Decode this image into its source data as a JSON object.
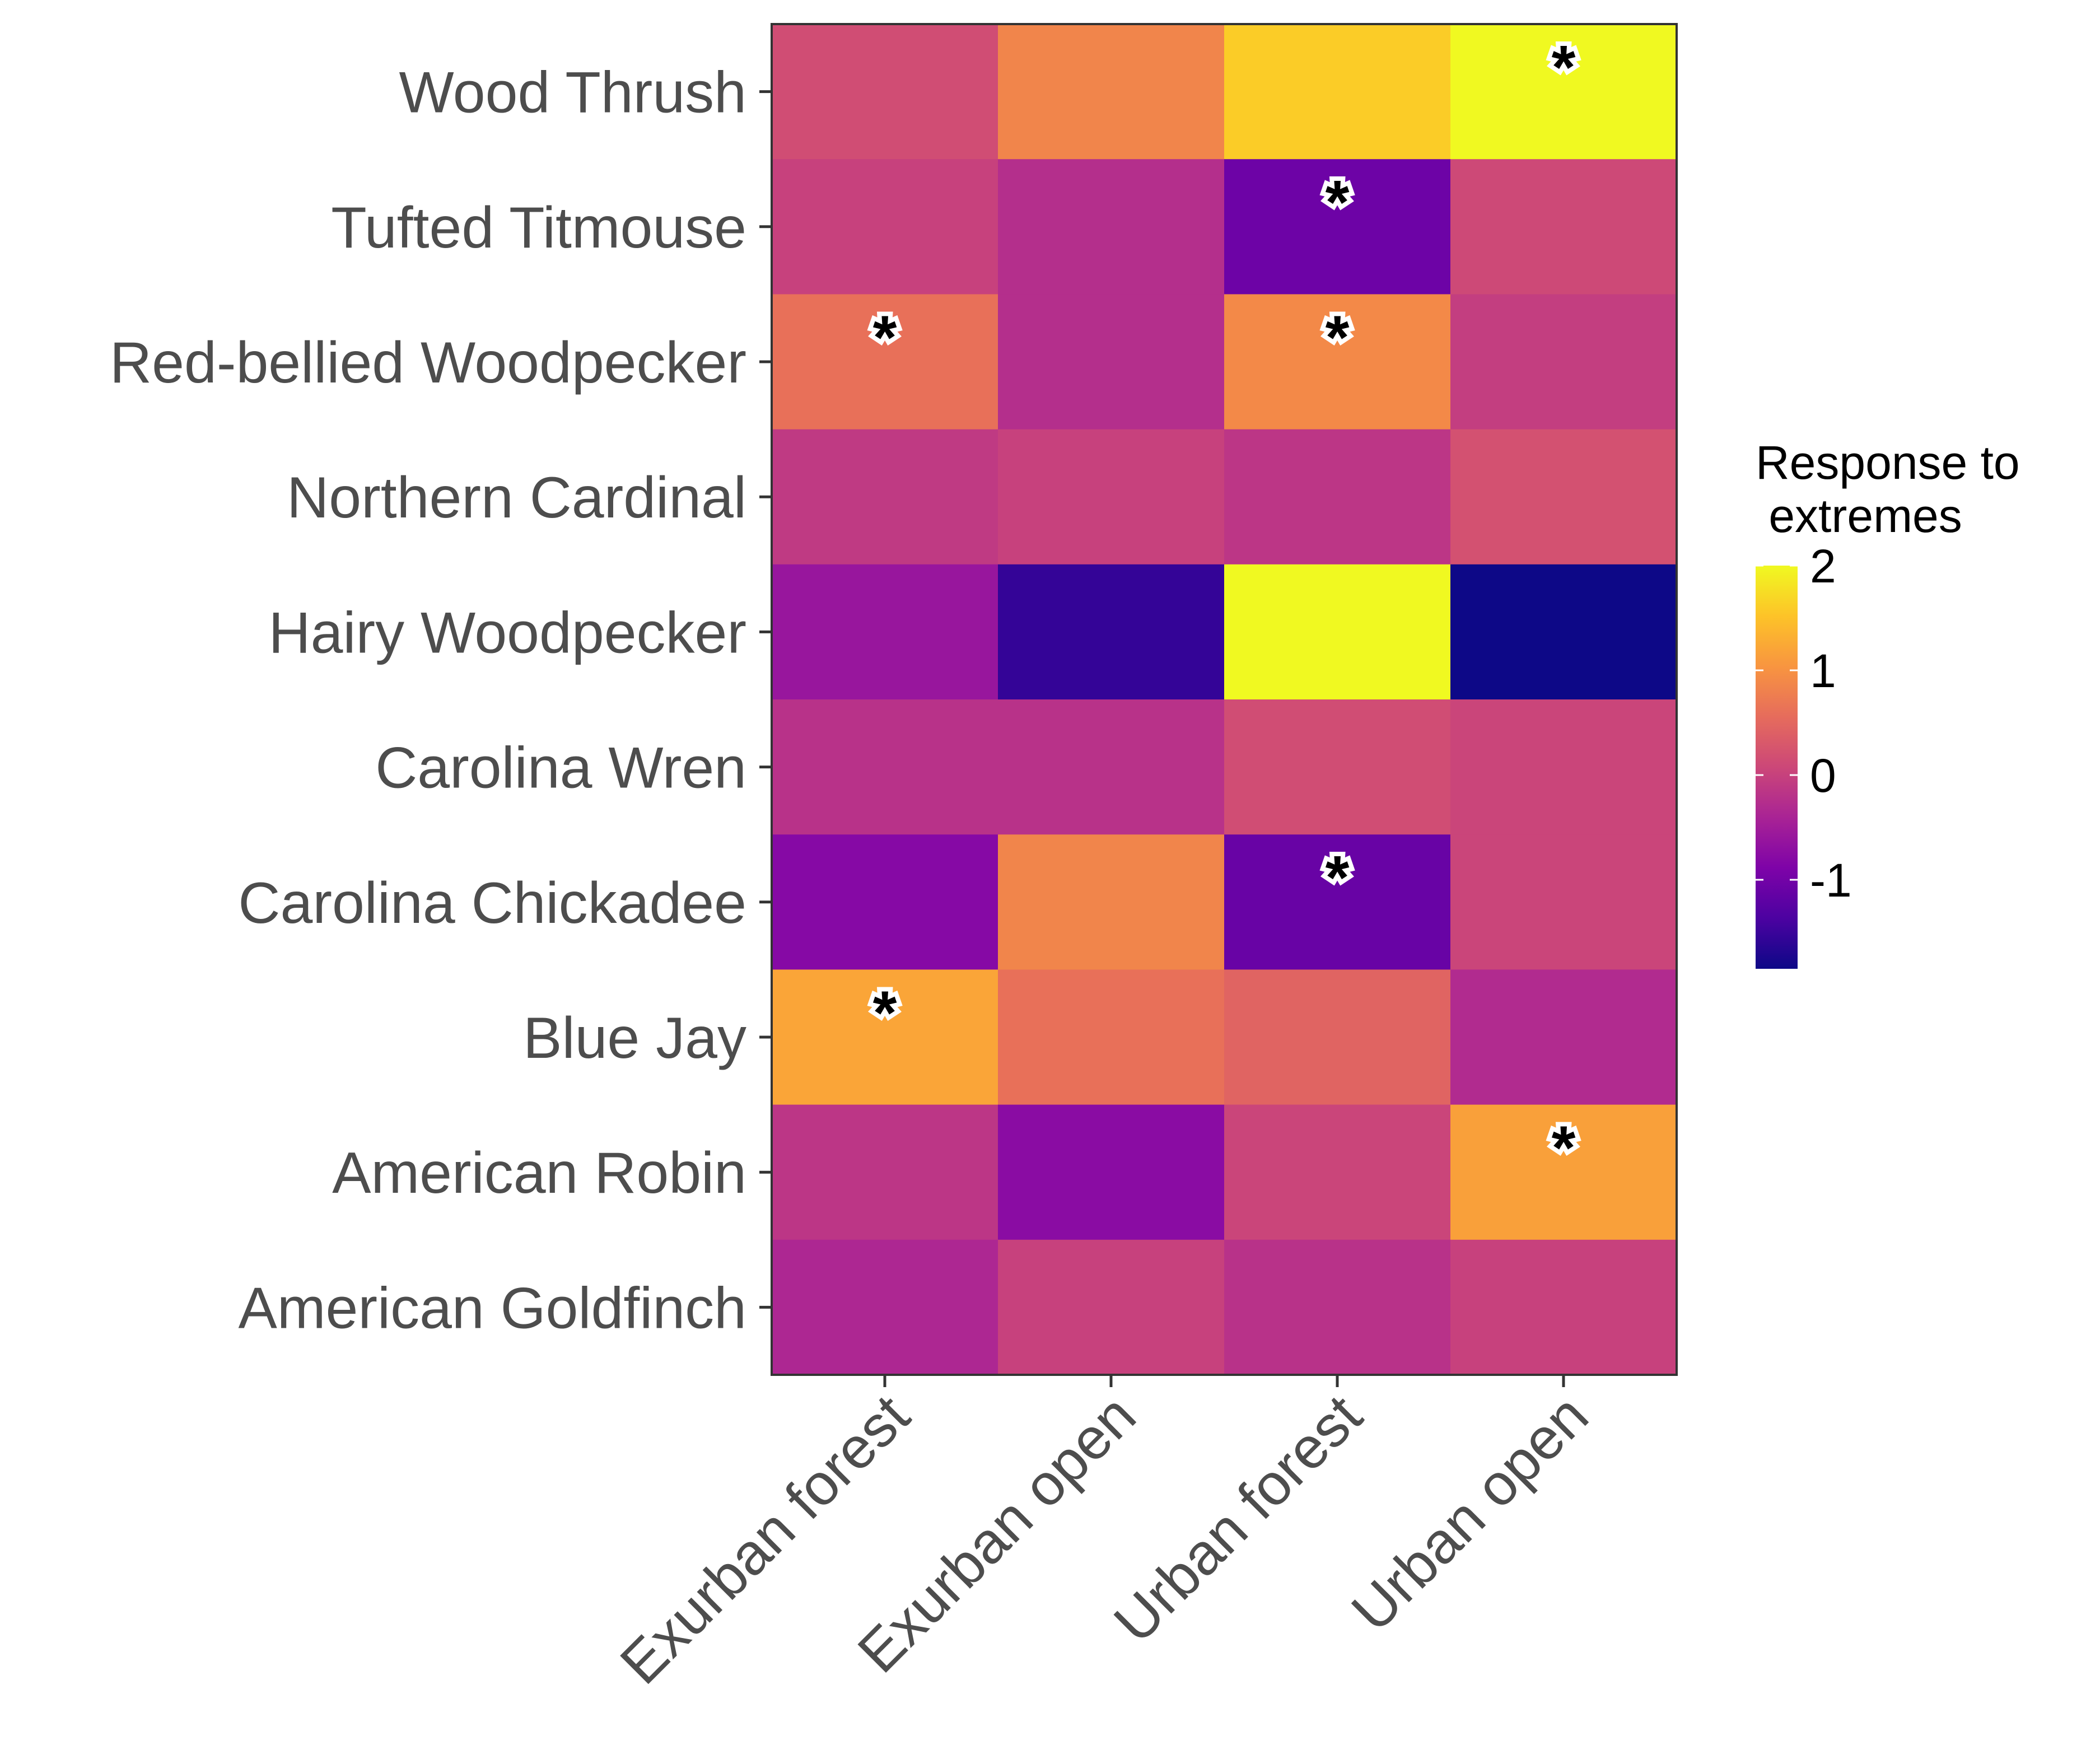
{
  "chart_data": {
    "type": "heatmap",
    "title": "",
    "xlabel": "",
    "ylabel": "",
    "x_categories": [
      "Exurban forest",
      "Exurban open",
      "Urban forest",
      "Urban open"
    ],
    "y_categories": [
      "Wood Thrush",
      "Tufted Titmouse",
      "Red-bellied Woodpecker",
      "Northern Cardinal",
      "Hairy Woodpecker",
      "Carolina Wren",
      "Carolina Chickadee",
      "Blue Jay",
      "American Robin",
      "American Goldfinch"
    ],
    "values": [
      [
        0.15,
        0.85,
        1.6,
        2.3
      ],
      [
        0.0,
        -0.25,
        -1.05,
        0.1
      ],
      [
        0.6,
        -0.25,
        0.9,
        -0.05
      ],
      [
        -0.1,
        0.0,
        -0.15,
        0.2
      ],
      [
        -0.6,
        -1.55,
        2.3,
        -1.85
      ],
      [
        -0.2,
        -0.2,
        0.15,
        0.05
      ],
      [
        -0.8,
        0.85,
        -1.1,
        0.05
      ],
      [
        1.2,
        0.6,
        0.45,
        -0.3
      ],
      [
        -0.15,
        -0.75,
        0.05,
        1.15
      ],
      [
        -0.35,
        0.0,
        -0.2,
        0.0
      ]
    ],
    "significance_marker": "*",
    "significant": [
      [
        false,
        false,
        false,
        true
      ],
      [
        false,
        false,
        true,
        false
      ],
      [
        true,
        false,
        true,
        false
      ],
      [
        false,
        false,
        false,
        false
      ],
      [
        false,
        false,
        false,
        false
      ],
      [
        false,
        false,
        false,
        false
      ],
      [
        false,
        false,
        true,
        false
      ],
      [
        true,
        false,
        false,
        false
      ],
      [
        false,
        false,
        false,
        true
      ],
      [
        false,
        false,
        false,
        false
      ]
    ],
    "legend": {
      "title_lines": [
        "Response to",
        " extremes"
      ],
      "ticks": [
        2,
        1,
        0,
        -1
      ],
      "range": [
        -1.85,
        2.0
      ],
      "position": "right",
      "colormap": "plasma"
    },
    "grid": false
  }
}
